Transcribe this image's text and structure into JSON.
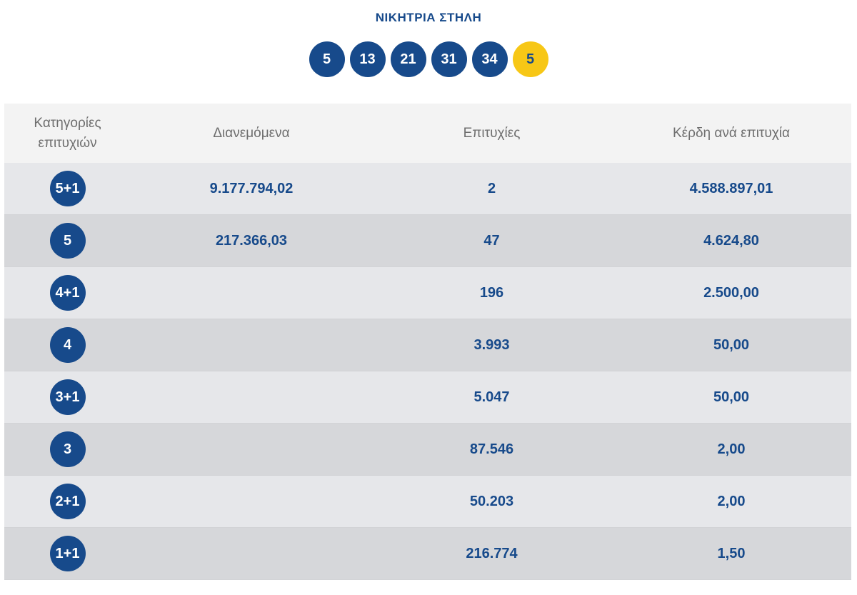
{
  "title": "ΝΙΚΗΤΡΙΑ ΣΤΗΛΗ",
  "winning_numbers": [
    "5",
    "13",
    "21",
    "31",
    "34"
  ],
  "joker_number": "5",
  "colors": {
    "ball": "#174a8b",
    "joker": "#f7c716",
    "row_light": "#e6e7ea",
    "row_dark": "#d6d7da"
  },
  "table": {
    "headers": {
      "category": "Κατηγορίες επιτυχιών",
      "distributed": "Διανεμόμενα",
      "winners": "Επιτυχίες",
      "prize": "Κέρδη ανά επιτυχία"
    },
    "rows": [
      {
        "category": "5+1",
        "distributed": "9.177.794,02",
        "winners": "2",
        "prize": "4.588.897,01"
      },
      {
        "category": "5",
        "distributed": "217.366,03",
        "winners": "47",
        "prize": "4.624,80"
      },
      {
        "category": "4+1",
        "distributed": "",
        "winners": "196",
        "prize": "2.500,00"
      },
      {
        "category": "4",
        "distributed": "",
        "winners": "3.993",
        "prize": "50,00"
      },
      {
        "category": "3+1",
        "distributed": "",
        "winners": "5.047",
        "prize": "50,00"
      },
      {
        "category": "3",
        "distributed": "",
        "winners": "87.546",
        "prize": "2,00"
      },
      {
        "category": "2+1",
        "distributed": "",
        "winners": "50.203",
        "prize": "2,00"
      },
      {
        "category": "1+1",
        "distributed": "",
        "winners": "216.774",
        "prize": "1,50"
      }
    ]
  }
}
